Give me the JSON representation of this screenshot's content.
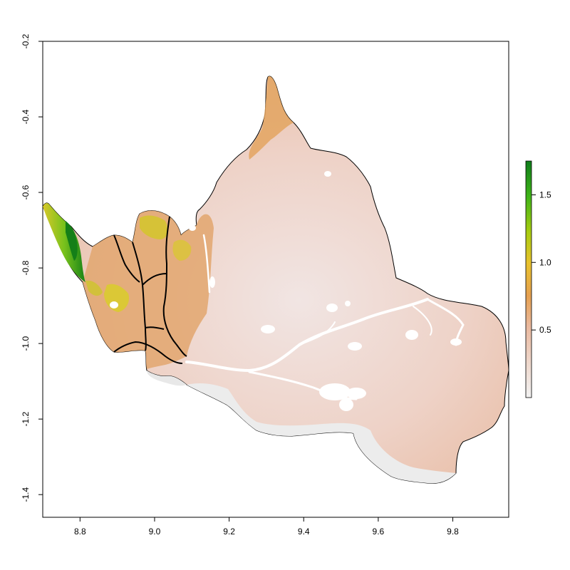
{
  "chart_data": {
    "type": "heatmap",
    "title": "",
    "xlabel": "",
    "ylabel": "",
    "xlim": [
      8.7,
      9.95
    ],
    "ylim": [
      -1.46,
      -0.2
    ],
    "x_ticks": [
      {
        "value": 8.8,
        "label": "8.8"
      },
      {
        "value": 9.0,
        "label": "9.0"
      },
      {
        "value": 9.2,
        "label": "9.2"
      },
      {
        "value": 9.4,
        "label": "9.4"
      },
      {
        "value": 9.6,
        "label": "9.6"
      },
      {
        "value": 9.8,
        "label": "9.8"
      }
    ],
    "y_ticks": [
      {
        "value": -0.2,
        "label": "-0.2"
      },
      {
        "value": -0.4,
        "label": "-0.4"
      },
      {
        "value": -0.6,
        "label": "-0.6"
      },
      {
        "value": -0.8,
        "label": "-0.8"
      },
      {
        "value": -1.0,
        "label": "-1.0"
      },
      {
        "value": -1.2,
        "label": "-1.2"
      },
      {
        "value": -1.4,
        "label": "-1.4"
      }
    ],
    "colorbar": {
      "range": [
        0,
        1.75
      ],
      "ticks": [
        {
          "value": 0.5,
          "label": "0.5"
        },
        {
          "value": 1.0,
          "label": "1.0"
        },
        {
          "value": 1.5,
          "label": "1.5"
        }
      ],
      "colors": [
        "#f2f2f2",
        "#eab99f",
        "#e6a050",
        "#e8c22c",
        "#a8cc10",
        "#3fb418",
        "#0f7d1a"
      ]
    },
    "colors": {
      "low": "#f1e6e2",
      "mid": "#edc8b9",
      "orange": "#e0a676",
      "yellow": "#d8c82a",
      "green": "#6cc01e",
      "darkgreen": "#1a8a1a",
      "river": "#ffffff"
    }
  }
}
